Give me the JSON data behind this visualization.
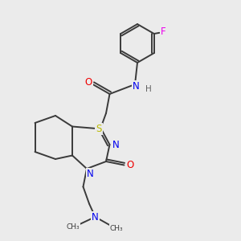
{
  "bg_color": "#ebebeb",
  "bond_color": "#3a3a3a",
  "atom_colors": {
    "N": "#0000ee",
    "O": "#ee0000",
    "S": "#bbbb00",
    "F": "#ee00ee",
    "C": "#3a3a3a",
    "H": "#606060"
  },
  "lw": 1.4,
  "fontsize": 8.5,
  "xlim": [
    0,
    10
  ],
  "ylim": [
    0,
    10
  ]
}
